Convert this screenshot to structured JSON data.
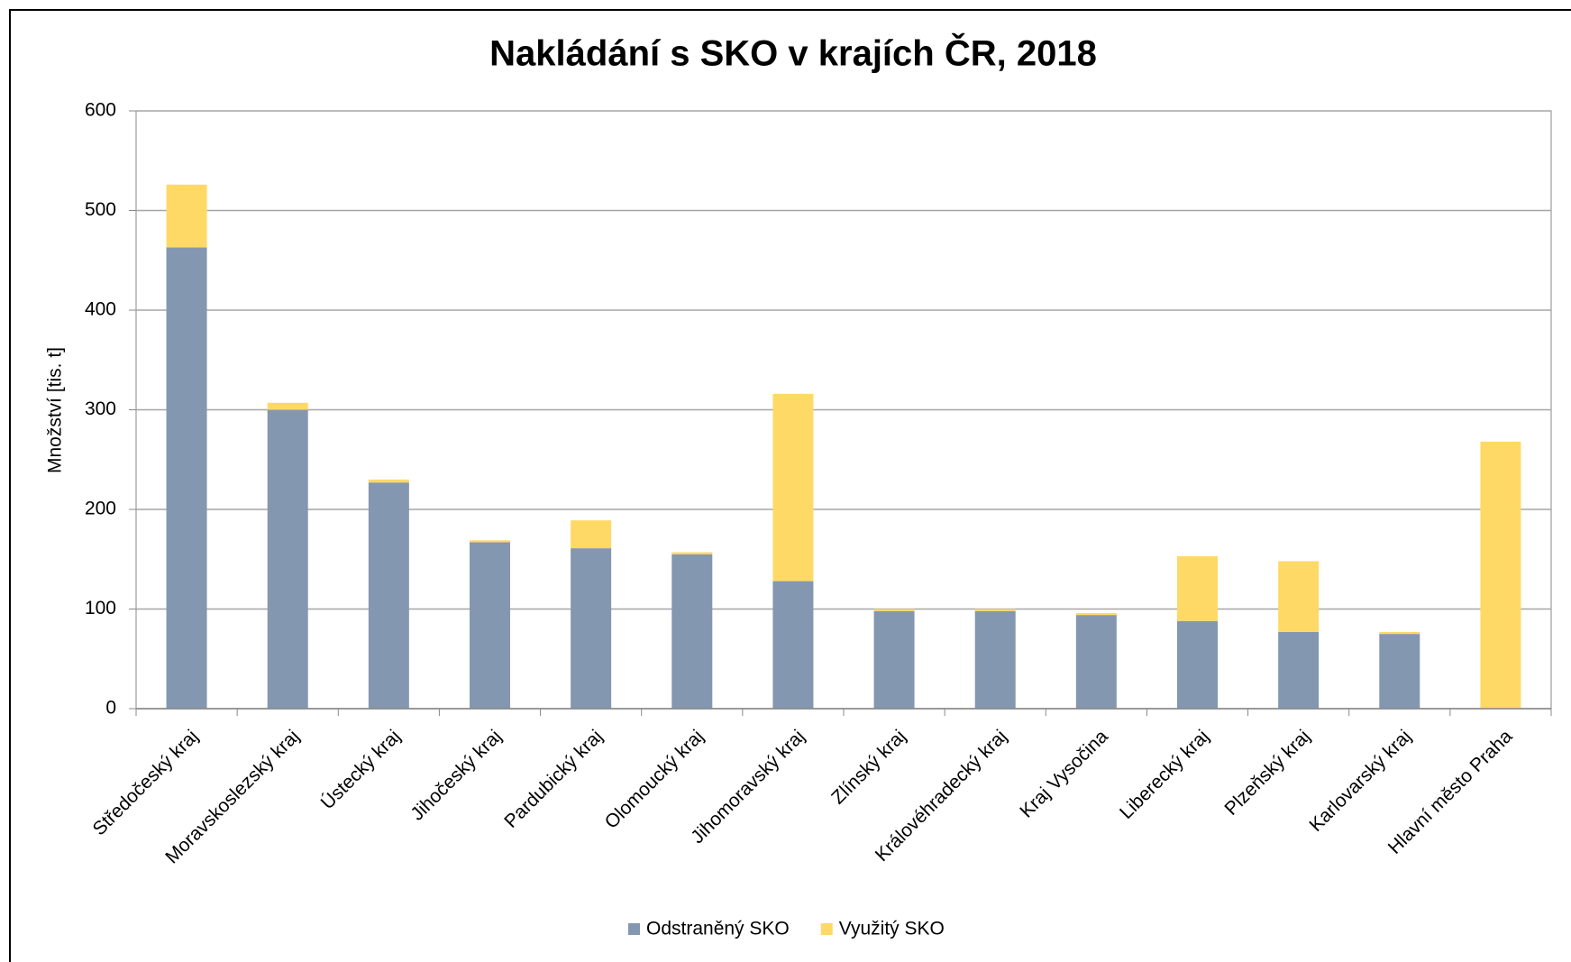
{
  "chart_data": {
    "type": "stacked_bar",
    "title": "Nakládání s SKO v krajích ČR, 2018",
    "y_label": "Množství [tis. t]",
    "categories": [
      "Středočeský kraj",
      "Moravskoslezský kraj",
      "Ústecký kraj",
      "Jihočeský kraj",
      "Pardubický kraj",
      "Olomoucký kraj",
      "Jihomoravský kraj",
      "Zlínský kraj",
      "Královéhradecký kraj",
      "Kraj Vysočina",
      "Liberecký kraj",
      "Plzeňský kraj",
      "Karlovarský kraj",
      "Hlavní město Praha"
    ],
    "series": [
      {
        "name": "Odstraněný SKO",
        "color": "#8497b0",
        "values": [
          463,
          300,
          227,
          167,
          161,
          155,
          128,
          98,
          98,
          94,
          88,
          77,
          75,
          0
        ]
      },
      {
        "name": "Využitý SKO",
        "color": "#ffd966",
        "values": [
          63,
          7,
          3,
          2,
          28,
          2,
          188,
          2,
          2,
          2,
          65,
          71,
          2,
          268
        ]
      }
    ],
    "ylim": [
      0,
      600
    ],
    "yticks": [
      0,
      100,
      200,
      300,
      400,
      500,
      600
    ],
    "grid": true,
    "legend": "bottom"
  }
}
